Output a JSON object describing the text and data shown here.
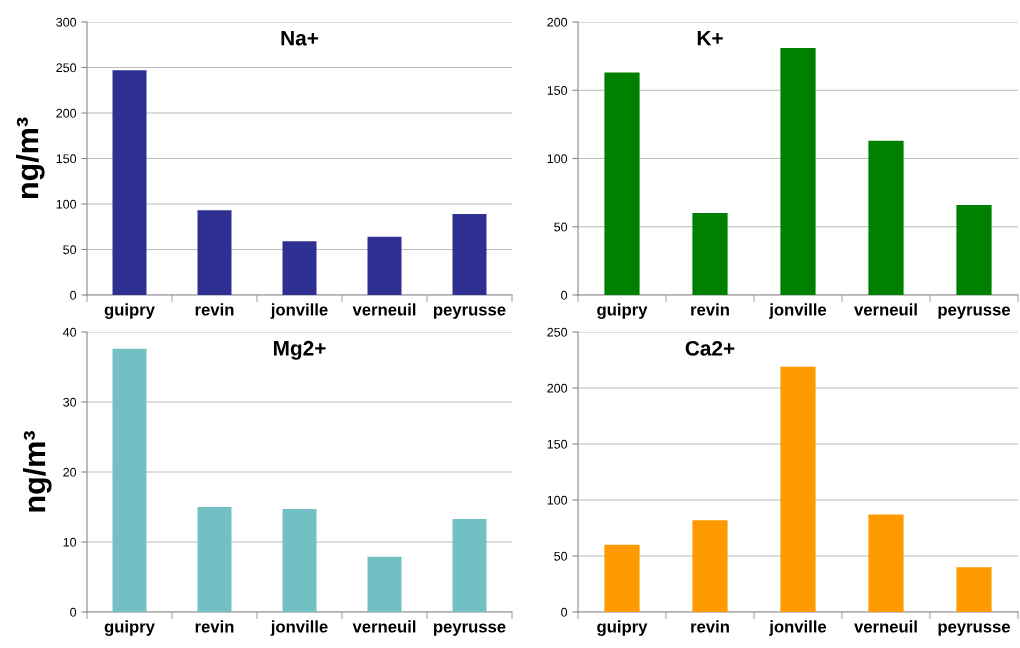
{
  "chart_data": [
    {
      "type": "bar",
      "title": "Na+",
      "ylabel": "ng/m³",
      "categories": [
        "guipry",
        "revin",
        "jonville",
        "verneuil",
        "peyrusse"
      ],
      "values": [
        247,
        93,
        59,
        64,
        89
      ],
      "color": "#2e3192",
      "ylim": [
        0,
        300
      ],
      "yticks": [
        0,
        50,
        100,
        150,
        200,
        250,
        300
      ],
      "grid": "y"
    },
    {
      "type": "bar",
      "title": "K+",
      "categories": [
        "guipry",
        "revin",
        "jonville",
        "verneuil",
        "peyrusse"
      ],
      "values": [
        163,
        60,
        181,
        113,
        66
      ],
      "color": "#008000",
      "ylim": [
        0,
        200
      ],
      "yticks": [
        0,
        50,
        100,
        150,
        200
      ],
      "grid": "y"
    },
    {
      "type": "bar",
      "title": "Mg2+",
      "ylabel": "ng/m³",
      "categories": [
        "guipry",
        "revin",
        "jonville",
        "verneuil",
        "peyrusse"
      ],
      "values": [
        37.6,
        15,
        14.7,
        7.9,
        13.3
      ],
      "color": "#72c0c4",
      "ylim": [
        0,
        40
      ],
      "yticks": [
        0,
        10,
        20,
        30,
        40
      ],
      "grid": "y"
    },
    {
      "type": "bar",
      "title": "Ca2+",
      "categories": [
        "guipry",
        "revin",
        "jonville",
        "verneuil",
        "peyrusse"
      ],
      "values": [
        60,
        82,
        219,
        87,
        40
      ],
      "color": "#ff9900",
      "ylim": [
        0,
        250
      ],
      "yticks": [
        0,
        50,
        100,
        150,
        200,
        250
      ],
      "grid": "y"
    }
  ]
}
